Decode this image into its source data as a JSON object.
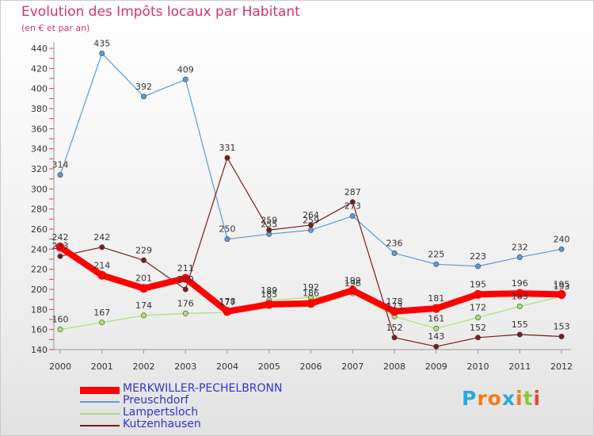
{
  "header": {
    "title": "Evolution des Impôts locaux par Habitant",
    "subtitle": "(en € et par an)"
  },
  "logo": {
    "letters": [
      "P",
      "r",
      "o",
      "x",
      "i",
      "t",
      "i"
    ],
    "colors": [
      "#2aa7e0",
      "#f07d1a",
      "#f07d1a",
      "#2aa7e0",
      "#f07d1a",
      "#8bc83f",
      "#e8462e"
    ]
  },
  "chart_data": {
    "type": "line",
    "title": "Evolution des Impôts locaux par Habitant",
    "subtitle": "(en € et par an)",
    "x": [
      "2000",
      "2001",
      "2002",
      "2003",
      "2004",
      "2005",
      "2006",
      "2007",
      "2008",
      "2009",
      "2010",
      "2011",
      "2012"
    ],
    "ylim": [
      140,
      440
    ],
    "yticks": [
      140,
      160,
      180,
      200,
      220,
      240,
      260,
      280,
      300,
      320,
      340,
      360,
      380,
      400,
      420,
      440
    ],
    "grid": false,
    "legend": "bottom-left",
    "series": [
      {
        "name": "MERKWILLER-PECHELBRONN",
        "color": "#ff0000",
        "values": [
          242,
          214,
          201,
          211,
          178,
          185,
          186,
          199,
          178,
          181,
          195,
          196,
          195
        ]
      },
      {
        "name": "Preuschdorf",
        "color": "#5b9bd5",
        "values": [
          314,
          435,
          392,
          409,
          250,
          255,
          259,
          273,
          236,
          225,
          223,
          232,
          240
        ]
      },
      {
        "name": "Lampertsloch",
        "color": "#a6e36e",
        "values": [
          160,
          167,
          174,
          176,
          177,
          189,
          192,
          196,
          173,
          161,
          172,
          183,
          193
        ]
      },
      {
        "name": "Kutzenhausen",
        "color": "#7b1c1c",
        "values": [
          233,
          242,
          229,
          200,
          331,
          259,
          264,
          287,
          152,
          143,
          152,
          155,
          153
        ]
      }
    ]
  }
}
